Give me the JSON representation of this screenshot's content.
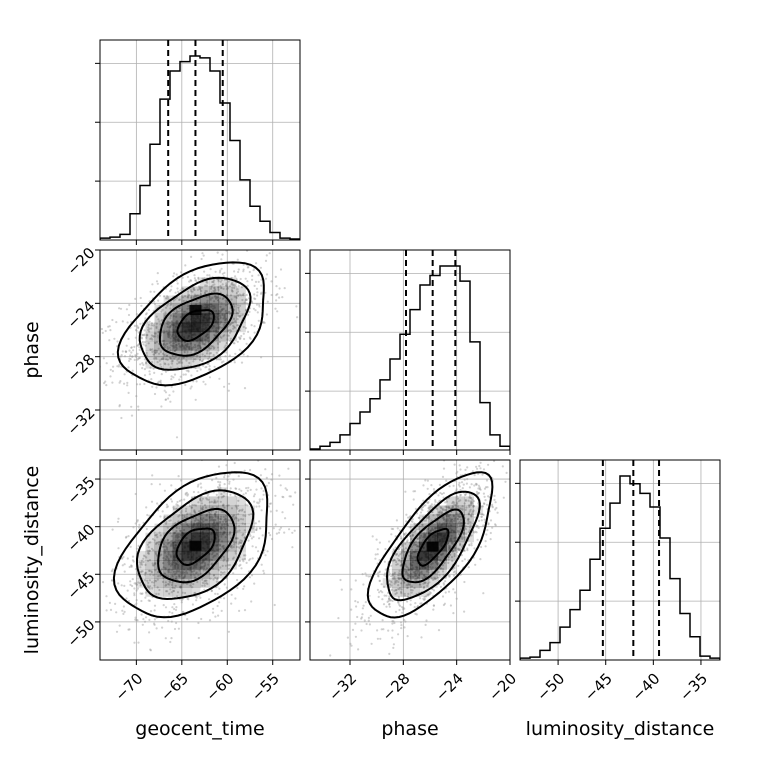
{
  "chart_data": {
    "type": "corner",
    "parameters": [
      "geocent_time",
      "phase",
      "luminosity_distance"
    ],
    "axis_labels": {
      "x": [
        "geocent_time",
        "phase",
        "luminosity_distance"
      ],
      "y": [
        "",
        "phase",
        "luminosity_distance"
      ]
    },
    "ranges": {
      "geocent_time": [
        -74,
        -52
      ],
      "phase": [
        -35,
        -20
      ],
      "luminosity_distance": [
        -54,
        -33
      ]
    },
    "ticks": {
      "geocent_time": [
        -70,
        -65,
        -60,
        -55
      ],
      "phase": [
        -32,
        -28,
        -24,
        -20
      ],
      "luminosity_distance": [
        -50,
        -45,
        -40,
        -35
      ]
    },
    "tick_labels": {
      "geocent_time": [
        "−70",
        "−65",
        "−60",
        "−55"
      ],
      "phase": [
        "−32",
        "−28",
        "−24",
        "−20"
      ],
      "luminosity_distance": [
        "−50",
        "−45",
        "−40",
        "−35"
      ]
    },
    "diag_grid_fraction": [
      0.32,
      0.64,
      0.96
    ],
    "histograms": {
      "geocent_time": {
        "bins": [
          -74,
          -72.9,
          -71.8,
          -70.7,
          -69.6,
          -68.5,
          -67.4,
          -66.3,
          -65.2,
          -64.1,
          -63,
          -61.9,
          -60.8,
          -59.7,
          -58.6,
          -57.5,
          -56.4,
          -55.3,
          -54.2,
          -53.1,
          -52
        ],
        "counts": [
          0.01,
          0.015,
          0.03,
          0.14,
          0.29,
          0.51,
          0.75,
          0.9,
          0.95,
          0.98,
          0.97,
          0.9,
          0.73,
          0.53,
          0.32,
          0.18,
          0.1,
          0.04,
          0.01,
          0.005
        ]
      },
      "phase": {
        "bins": [
          -35,
          -34.25,
          -33.5,
          -32.75,
          -32,
          -31.25,
          -30.5,
          -29.75,
          -29,
          -28.25,
          -27.5,
          -26.75,
          -26,
          -25.25,
          -24.5,
          -23.75,
          -23,
          -22.25,
          -21.5,
          -20.75,
          -20
        ],
        "counts": [
          0.005,
          0.02,
          0.04,
          0.08,
          0.14,
          0.2,
          0.27,
          0.37,
          0.48,
          0.61,
          0.74,
          0.87,
          0.92,
          0.97,
          0.97,
          0.89,
          0.57,
          0.25,
          0.08,
          0.02
        ]
      },
      "luminosity_distance": {
        "bins": [
          -54,
          -52.95,
          -51.9,
          -50.85,
          -49.8,
          -48.75,
          -47.7,
          -46.65,
          -45.6,
          -44.55,
          -43.5,
          -42.45,
          -41.4,
          -40.35,
          -39.3,
          -38.25,
          -37.2,
          -36.15,
          -35.1,
          -34.05,
          -33
        ],
        "counts": [
          0.01,
          0.015,
          0.05,
          0.09,
          0.17,
          0.26,
          0.36,
          0.52,
          0.68,
          0.81,
          0.95,
          0.91,
          0.86,
          0.79,
          0.63,
          0.42,
          0.24,
          0.12,
          0.02,
          0.01
        ]
      }
    },
    "quantiles": {
      "geocent_time": [
        -66.5,
        -63.5,
        -60.5
      ],
      "phase": [
        -27.8,
        -25.8,
        -24.1
      ],
      "luminosity_distance": [
        -45.3,
        -42.1,
        -39.4
      ]
    },
    "pairs": [
      {
        "x": "geocent_time",
        "y": "phase",
        "center": [
          -63.5,
          -25.6
        ],
        "spread": [
          4.0,
          2.3
        ],
        "correlation": 0.45,
        "peak": [
          -63.5,
          -24.5
        ]
      },
      {
        "x": "geocent_time",
        "y": "luminosity_distance",
        "center": [
          -63.5,
          -42.0
        ],
        "spread": [
          4.2,
          3.8
        ],
        "correlation": 0.45,
        "peak": [
          -63.5,
          -42.0
        ]
      },
      {
        "x": "phase",
        "y": "luminosity_distance",
        "center": [
          -25.8,
          -42.1
        ],
        "spread": [
          2.3,
          3.8
        ],
        "correlation": 0.7,
        "peak": [
          -25.8,
          -42.1
        ]
      }
    ],
    "contour_levels_sigma": [
      0.5,
      1.0,
      1.5,
      2.0
    ],
    "scatter_color": "#9a9a9a",
    "density_color": "#000000",
    "grid": true
  }
}
